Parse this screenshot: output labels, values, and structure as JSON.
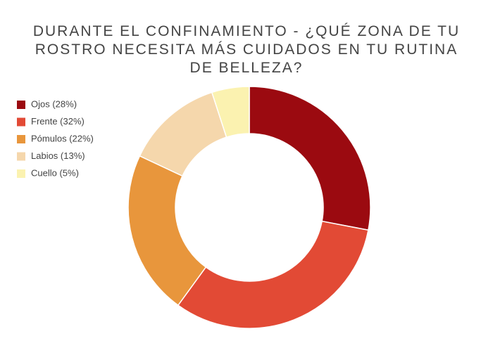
{
  "chart_data": {
    "type": "donut",
    "title": "DURANTE EL CONFINAMIENTO - ¿QUÉ ZONA DE TU ROSTRO NECESITA MÁS CUIDADOS EN TU RUTINA DE BELLEZA?",
    "categories": [
      "Ojos (28%)",
      "Frente (32%)",
      "Pómulos (22%)",
      "Labios (13%)",
      "Cuello (5%)"
    ],
    "values": [
      28,
      32,
      22,
      13,
      5
    ],
    "colors": [
      "#9b0a10",
      "#e24a35",
      "#e8963c",
      "#f5d7ac",
      "#fbf2b0"
    ],
    "legend": "top-left"
  }
}
